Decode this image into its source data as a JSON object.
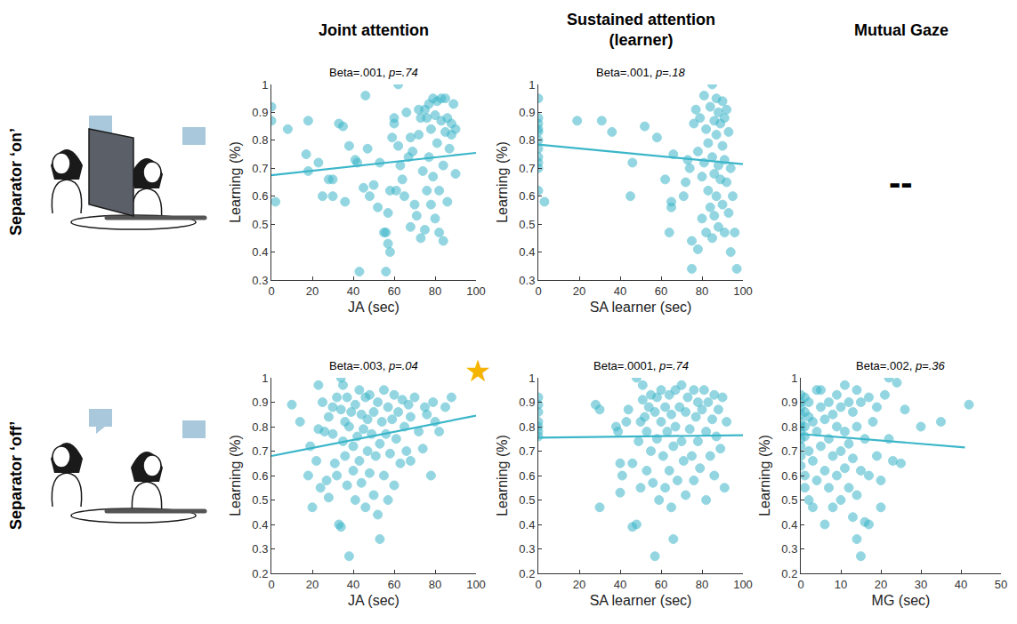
{
  "columns": [
    "Joint attention",
    "Sustained attention (learner)",
    "Mutual Gaze"
  ],
  "rows": [
    "Separator ‘on’",
    "Separator ‘off’"
  ],
  "chart_data": [
    {
      "type": "scatter",
      "title": "Beta=.001, p=.74",
      "x_label": "JA (sec)",
      "y_label": "Learning (%)",
      "color": "#3bb6c9",
      "grid": false,
      "xlim": [
        0,
        100
      ],
      "xticks": [
        0,
        20,
        40,
        60,
        80,
        100
      ],
      "ylim": [
        0.3,
        1
      ],
      "yticks": [
        0.3,
        0.4,
        0.5,
        0.6,
        0.7,
        0.8,
        0.9,
        1
      ],
      "fit": {
        "x": [
          0,
          100
        ],
        "y": [
          0.675,
          0.755
        ]
      },
      "x": [
        0,
        0,
        2,
        8,
        17,
        18,
        18,
        23,
        25,
        28,
        30,
        30,
        33,
        35,
        36,
        38,
        41,
        42,
        43,
        45,
        46,
        47,
        48,
        50,
        52,
        53,
        55,
        56,
        56,
        57,
        57,
        58,
        58,
        59,
        60,
        60,
        61,
        62,
        62,
        63,
        64,
        65,
        66,
        67,
        68,
        68,
        69,
        70,
        71,
        72,
        72,
        73,
        73,
        74,
        75,
        75,
        76,
        76,
        77,
        77,
        78,
        78,
        79,
        79,
        80,
        80,
        81,
        81,
        82,
        82,
        83,
        83,
        84,
        84,
        85,
        85,
        86,
        86,
        87,
        88,
        88,
        89,
        90,
        90
      ],
      "y": [
        0.92,
        0.87,
        0.58,
        0.84,
        0.75,
        0.69,
        0.87,
        0.72,
        0.6,
        0.66,
        0.6,
        0.66,
        0.86,
        0.85,
        0.58,
        0.78,
        0.73,
        0.72,
        0.33,
        0.63,
        0.96,
        0.77,
        0.6,
        0.64,
        0.56,
        0.72,
        0.47,
        0.47,
        0.33,
        0.43,
        0.54,
        0.62,
        0.4,
        0.81,
        0.88,
        0.86,
        0.62,
        1.0,
        0.78,
        0.71,
        0.66,
        0.6,
        0.9,
        0.74,
        0.49,
        0.81,
        0.76,
        0.57,
        0.53,
        0.82,
        0.91,
        0.88,
        0.45,
        0.69,
        0.91,
        0.48,
        0.88,
        0.62,
        0.74,
        0.93,
        0.57,
        0.84,
        0.95,
        0.67,
        0.89,
        0.52,
        0.94,
        0.79,
        0.62,
        0.47,
        0.87,
        0.95,
        0.71,
        0.44,
        0.83,
        0.95,
        0.88,
        0.58,
        0.77,
        0.86,
        0.82,
        0.93,
        0.68,
        0.84
      ]
    },
    {
      "type": "scatter",
      "title": "Beta=.001, p=.18",
      "x_label": "SA learner (sec)",
      "y_label": "Learning (%)",
      "color": "#3bb6c9",
      "grid": false,
      "xlim": [
        0,
        100
      ],
      "xticks": [
        0,
        20,
        40,
        60,
        80,
        100
      ],
      "ylim": [
        0.3,
        1
      ],
      "yticks": [
        0.3,
        0.4,
        0.5,
        0.6,
        0.7,
        0.8,
        0.9,
        1
      ],
      "fit": {
        "x": [
          0,
          100
        ],
        "y": [
          0.785,
          0.715
        ]
      },
      "x": [
        0,
        0,
        0,
        0,
        0,
        0,
        0,
        0,
        0,
        0,
        0,
        3,
        19,
        31,
        36,
        45,
        46,
        52,
        58,
        62,
        64,
        65,
        65,
        66,
        71,
        72,
        73,
        74,
        75,
        75,
        76,
        77,
        78,
        78,
        79,
        80,
        80,
        81,
        81,
        82,
        82,
        83,
        83,
        84,
        84,
        85,
        85,
        85,
        86,
        86,
        86,
        87,
        87,
        87,
        88,
        88,
        88,
        89,
        89,
        90,
        90,
        90,
        91,
        91,
        91,
        92,
        92,
        93,
        93,
        94,
        94,
        95,
        96,
        97
      ],
      "y": [
        0.95,
        0.88,
        0.86,
        0.84,
        0.83,
        0.8,
        0.77,
        0.74,
        0.72,
        0.7,
        0.62,
        0.58,
        0.87,
        0.87,
        0.83,
        0.6,
        0.72,
        0.85,
        0.81,
        0.66,
        0.47,
        0.56,
        0.58,
        0.75,
        0.6,
        0.65,
        0.73,
        0.7,
        0.34,
        0.44,
        0.86,
        0.91,
        0.76,
        0.41,
        0.88,
        0.52,
        0.67,
        0.96,
        0.72,
        0.47,
        0.84,
        0.62,
        0.79,
        0.92,
        0.56,
        1.0,
        0.74,
        0.45,
        0.87,
        0.68,
        0.53,
        0.95,
        0.82,
        0.6,
        0.9,
        0.71,
        0.49,
        0.86,
        0.66,
        0.94,
        0.78,
        0.57,
        0.88,
        0.73,
        0.47,
        0.91,
        0.65,
        0.83,
        0.54,
        0.7,
        0.4,
        0.6,
        0.47,
        0.34
      ]
    },
    {
      "type": "none",
      "text": "--"
    },
    {
      "type": "scatter",
      "title": "Beta=.003, p=.04",
      "x_label": "JA (sec)",
      "y_label": "Learning (%)",
      "color": "#3bb6c9",
      "grid": false,
      "annotations": [
        {
          "text": "★",
          "color": "#f5b400"
        }
      ],
      "xlim": [
        0,
        100
      ],
      "xticks": [
        0,
        20,
        40,
        60,
        80,
        100
      ],
      "ylim": [
        0.2,
        1
      ],
      "yticks": [
        0.2,
        0.3,
        0.4,
        0.5,
        0.6,
        0.7,
        0.8,
        0.9,
        1
      ],
      "fit": {
        "x": [
          0,
          100
        ],
        "y": [
          0.68,
          0.845
        ]
      },
      "x": [
        10,
        14,
        18,
        19,
        20,
        22,
        23,
        23,
        24,
        25,
        26,
        27,
        28,
        28,
        30,
        30,
        31,
        32,
        32,
        33,
        34,
        34,
        34,
        35,
        35,
        36,
        36,
        37,
        37,
        38,
        38,
        39,
        40,
        40,
        41,
        41,
        42,
        43,
        43,
        44,
        44,
        45,
        46,
        46,
        47,
        47,
        48,
        48,
        49,
        50,
        50,
        51,
        52,
        52,
        53,
        53,
        54,
        55,
        55,
        56,
        57,
        57,
        58,
        59,
        60,
        60,
        61,
        62,
        63,
        64,
        65,
        66,
        67,
        68,
        68,
        70,
        72,
        74,
        75,
        76,
        78,
        79,
        80,
        82,
        85,
        88
      ],
      "y": [
        0.89,
        0.82,
        0.6,
        0.72,
        0.47,
        0.66,
        0.97,
        0.79,
        0.55,
        0.9,
        0.78,
        0.58,
        0.84,
        0.51,
        0.88,
        0.77,
        0.65,
        0.92,
        0.6,
        0.4,
        0.39,
        0.87,
        1.0,
        0.74,
        0.97,
        0.68,
        0.82,
        0.92,
        0.56,
        0.27,
        0.8,
        0.86,
        0.72,
        0.62,
        0.89,
        0.5,
        0.76,
        0.95,
        0.66,
        0.85,
        0.57,
        0.79,
        0.92,
        0.47,
        0.7,
        0.83,
        0.61,
        0.93,
        0.77,
        0.86,
        0.52,
        0.68,
        0.9,
        0.44,
        0.73,
        0.34,
        0.82,
        0.6,
        0.95,
        0.77,
        0.88,
        0.5,
        0.69,
        0.83,
        0.93,
        0.56,
        0.75,
        0.86,
        0.65,
        0.91,
        0.8,
        0.7,
        0.89,
        0.84,
        0.66,
        0.92,
        0.78,
        0.71,
        0.88,
        0.85,
        0.6,
        0.9,
        0.82,
        0.78,
        0.88,
        0.92
      ]
    },
    {
      "type": "scatter",
      "title": "Beta=.0001, p=.74",
      "x_label": "SA learner (sec)",
      "y_label": "Learning (%)",
      "color": "#3bb6c9",
      "grid": false,
      "xlim": [
        0,
        100
      ],
      "xticks": [
        0,
        20,
        40,
        60,
        80,
        100
      ],
      "ylim": [
        0.2,
        1
      ],
      "yticks": [
        0.2,
        0.3,
        0.4,
        0.5,
        0.6,
        0.7,
        0.8,
        0.9,
        1
      ],
      "fit": {
        "x": [
          0,
          100
        ],
        "y": [
          0.755,
          0.765
        ]
      },
      "x": [
        0,
        0,
        0,
        0,
        0,
        0,
        0,
        28,
        30,
        30,
        38,
        39,
        40,
        40,
        41,
        43,
        44,
        46,
        46,
        48,
        48,
        49,
        50,
        50,
        51,
        51,
        52,
        53,
        53,
        54,
        55,
        55,
        56,
        57,
        57,
        58,
        58,
        59,
        60,
        60,
        61,
        62,
        62,
        63,
        64,
        64,
        65,
        65,
        66,
        66,
        67,
        67,
        68,
        69,
        70,
        70,
        71,
        72,
        72,
        73,
        74,
        75,
        76,
        76,
        77,
        78,
        78,
        79,
        80,
        81,
        82,
        82,
        83,
        84,
        85,
        86,
        86,
        87,
        88,
        89,
        90,
        91,
        92
      ],
      "y": [
        0.92,
        0.89,
        0.86,
        0.82,
        0.8,
        0.78,
        0.76,
        0.89,
        0.87,
        0.47,
        0.8,
        0.78,
        0.65,
        0.53,
        0.6,
        0.82,
        0.87,
        0.65,
        0.39,
        1.0,
        0.4,
        0.74,
        0.82,
        0.55,
        0.97,
        0.91,
        0.84,
        0.78,
        0.62,
        0.88,
        0.93,
        0.7,
        0.57,
        0.86,
        0.27,
        0.92,
        0.75,
        0.5,
        0.82,
        0.95,
        0.68,
        0.88,
        0.55,
        0.78,
        0.93,
        0.62,
        0.85,
        0.47,
        0.72,
        0.34,
        0.95,
        0.8,
        0.58,
        0.88,
        0.74,
        0.97,
        0.66,
        0.86,
        0.52,
        0.92,
        0.79,
        0.68,
        0.95,
        0.58,
        0.84,
        0.9,
        0.74,
        0.63,
        0.87,
        0.95,
        0.78,
        0.5,
        0.9,
        0.68,
        0.83,
        0.93,
        0.6,
        0.76,
        0.87,
        0.71,
        0.92,
        0.55,
        0.82
      ]
    },
    {
      "type": "scatter",
      "title": "Beta=.002, p=.36",
      "x_label": "MG (sec)",
      "y_label": "Learning (%)",
      "color": "#3bb6c9",
      "grid": false,
      "xlim": [
        0,
        50
      ],
      "xticks": [
        0,
        10,
        20,
        30,
        40,
        50
      ],
      "ylim": [
        0.2,
        1
      ],
      "yticks": [
        0.2,
        0.3,
        0.4,
        0.5,
        0.6,
        0.7,
        0.8,
        0.9,
        1
      ],
      "fit": {
        "x": [
          0,
          41
        ],
        "y": [
          0.77,
          0.715
        ]
      },
      "x": [
        0,
        0,
        0,
        0,
        0,
        0,
        0,
        0,
        0,
        0,
        0,
        1,
        1,
        1,
        1,
        1,
        1,
        2,
        2,
        2,
        2,
        3,
        3,
        3,
        4,
        4,
        4,
        5,
        5,
        5,
        6,
        6,
        6,
        7,
        7,
        7,
        8,
        8,
        8,
        9,
        9,
        9,
        10,
        10,
        10,
        11,
        11,
        11,
        12,
        12,
        12,
        13,
        13,
        13,
        14,
        14,
        14,
        14,
        15,
        15,
        15,
        16,
        16,
        17,
        17,
        17,
        18,
        19,
        19,
        20,
        20,
        21,
        22,
        22,
        23,
        24,
        25,
        26,
        30,
        35,
        42
      ],
      "y": [
        0.93,
        0.9,
        0.88,
        0.85,
        0.82,
        0.8,
        0.78,
        0.75,
        0.72,
        0.68,
        0.64,
        0.92,
        0.86,
        0.8,
        0.76,
        0.55,
        0.6,
        0.9,
        0.84,
        0.7,
        0.5,
        0.82,
        0.66,
        0.47,
        0.95,
        0.78,
        0.58,
        0.88,
        0.72,
        0.95,
        0.83,
        0.62,
        0.4,
        0.9,
        0.75,
        0.55,
        0.85,
        0.68,
        0.47,
        0.93,
        0.8,
        0.6,
        0.88,
        0.7,
        0.5,
        0.97,
        0.78,
        0.63,
        0.9,
        0.73,
        0.55,
        0.86,
        0.67,
        0.43,
        0.95,
        0.8,
        0.52,
        0.34,
        0.9,
        0.62,
        0.27,
        0.75,
        0.41,
        0.92,
        0.6,
        0.4,
        0.82,
        0.88,
        0.68,
        0.58,
        0.47,
        0.93,
        1.0,
        0.75,
        0.66,
        0.98,
        0.65,
        0.87,
        0.8,
        0.82,
        0.89
      ]
    }
  ]
}
